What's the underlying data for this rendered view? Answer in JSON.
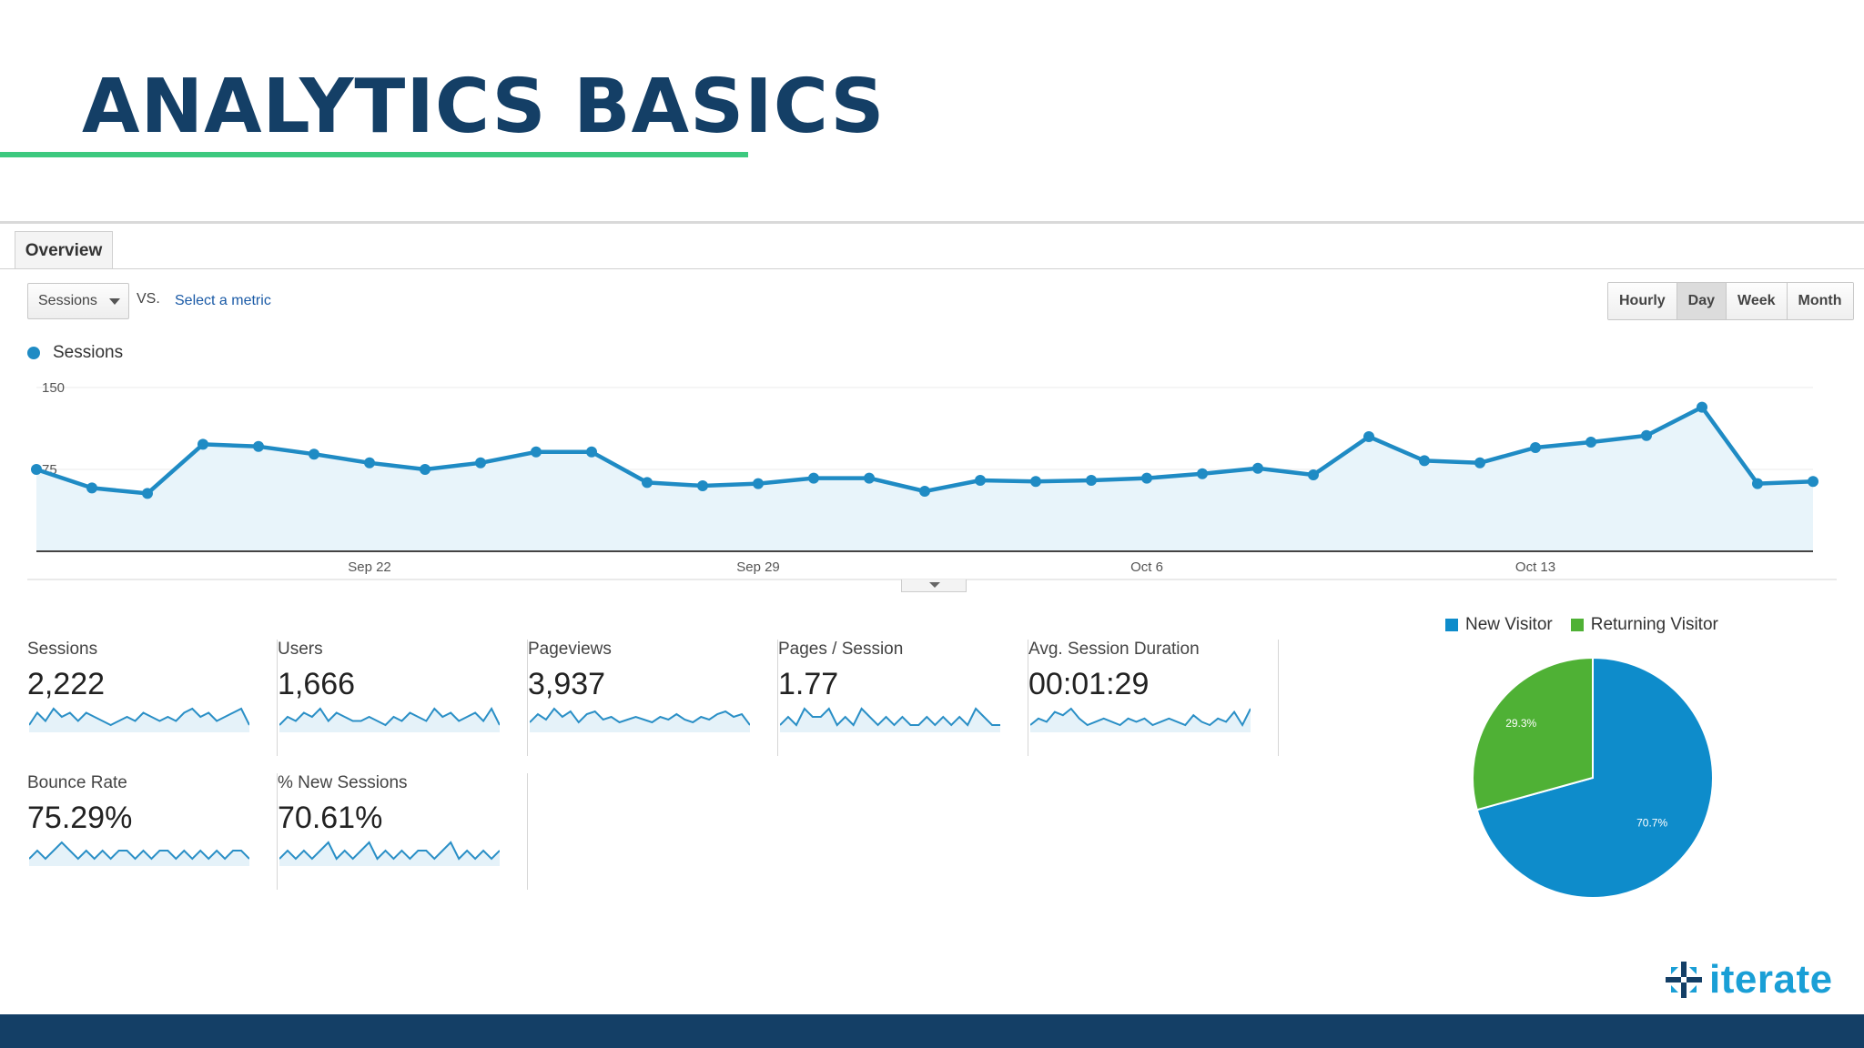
{
  "slide": {
    "title": "ANALYTICS BASICS",
    "logo_text": "iterate",
    "colors": {
      "title": "#143f66",
      "accent_line": "#3dc97f",
      "footer": "#143f66",
      "logo": "#1a9fd6"
    }
  },
  "overview": {
    "tab_label": "Overview",
    "metric_select": "Sessions",
    "vs_label": "VS.",
    "select_metric_link": "Select a metric",
    "period_buttons": [
      {
        "label": "Hourly",
        "active": false
      },
      {
        "label": "Day",
        "active": true
      },
      {
        "label": "Week",
        "active": false
      },
      {
        "label": "Month",
        "active": false
      }
    ]
  },
  "chart_data": [
    {
      "type": "area",
      "legend": [
        "Sessions"
      ],
      "series": [
        {
          "name": "Sessions",
          "color": "#1f8bc4",
          "values": [
            75,
            58,
            53,
            98,
            96,
            89,
            81,
            75,
            81,
            91,
            91,
            63,
            60,
            62,
            67,
            67,
            55,
            65,
            64,
            65,
            67,
            71,
            76,
            70,
            105,
            83,
            81,
            95,
            100,
            106,
            132,
            62,
            64
          ]
        }
      ],
      "y_ticks": [
        "150",
        "75"
      ],
      "ylim": [
        0,
        150
      ],
      "x_tick_labels": [
        {
          "label": "Sep 22",
          "index": 6
        },
        {
          "label": "Sep 29",
          "index": 13
        },
        {
          "label": "Oct 6",
          "index": 20
        },
        {
          "label": "Oct 13",
          "index": 27
        }
      ],
      "grid": true,
      "legend_position": "top-left"
    },
    {
      "type": "pie",
      "legend": [
        "New Visitor",
        "Returning Visitor"
      ],
      "slices": [
        {
          "name": "New Visitor",
          "value": 70.7,
          "label": "70.7%",
          "color": "#0e8ccb"
        },
        {
          "name": "Returning Visitor",
          "value": 29.3,
          "label": "29.3%",
          "color": "#4fb135"
        }
      ],
      "legend_position": "top"
    }
  ],
  "scorecards": [
    {
      "label": "Sessions",
      "value": "2,222",
      "spark": [
        5,
        8,
        6,
        9,
        7,
        8,
        6,
        8,
        7,
        6,
        5,
        6,
        7,
        6,
        8,
        7,
        6,
        7,
        6,
        8,
        9,
        7,
        8,
        6,
        7,
        8,
        9,
        5
      ]
    },
    {
      "label": "Users",
      "value": "1,666",
      "spark": [
        5,
        7,
        6,
        8,
        7,
        9,
        6,
        8,
        7,
        6,
        6,
        7,
        6,
        5,
        7,
        6,
        8,
        7,
        6,
        9,
        7,
        8,
        6,
        7,
        8,
        6,
        9,
        5
      ]
    },
    {
      "label": "Pageviews",
      "value": "3,937",
      "spark": [
        5,
        8,
        6,
        10,
        7,
        9,
        5,
        8,
        9,
        6,
        7,
        5,
        6,
        7,
        6,
        5,
        7,
        6,
        8,
        6,
        5,
        7,
        6,
        8,
        9,
        7,
        8,
        4
      ]
    },
    {
      "label": "Pages / Session",
      "value": "1.77",
      "spark": [
        6,
        7,
        6,
        8,
        7,
        7,
        8,
        6,
        7,
        6,
        8,
        7,
        6,
        7,
        6,
        7,
        6,
        6,
        7,
        6,
        7,
        6,
        7,
        6,
        8,
        7,
        6,
        6
      ]
    },
    {
      "label": "Avg. Session Duration",
      "value": "00:01:29",
      "spark": [
        5,
        7,
        6,
        9,
        8,
        10,
        7,
        5,
        6,
        7,
        6,
        5,
        7,
        6,
        7,
        5,
        6,
        7,
        6,
        5,
        8,
        6,
        5,
        7,
        6,
        9,
        5,
        10
      ]
    },
    {
      "label": "Bounce Rate",
      "value": "75.29%",
      "spark": [
        6,
        7,
        6,
        7,
        8,
        7,
        6,
        7,
        6,
        7,
        6,
        7,
        7,
        6,
        7,
        6,
        7,
        7,
        6,
        7,
        6,
        7,
        6,
        7,
        6,
        7,
        7,
        6
      ]
    },
    {
      "label": "% New Sessions",
      "value": "70.61%",
      "spark": [
        6,
        7,
        6,
        7,
        6,
        7,
        8,
        6,
        7,
        6,
        7,
        8,
        6,
        7,
        6,
        7,
        6,
        7,
        7,
        6,
        7,
        8,
        6,
        7,
        6,
        7,
        6,
        7
      ]
    }
  ]
}
